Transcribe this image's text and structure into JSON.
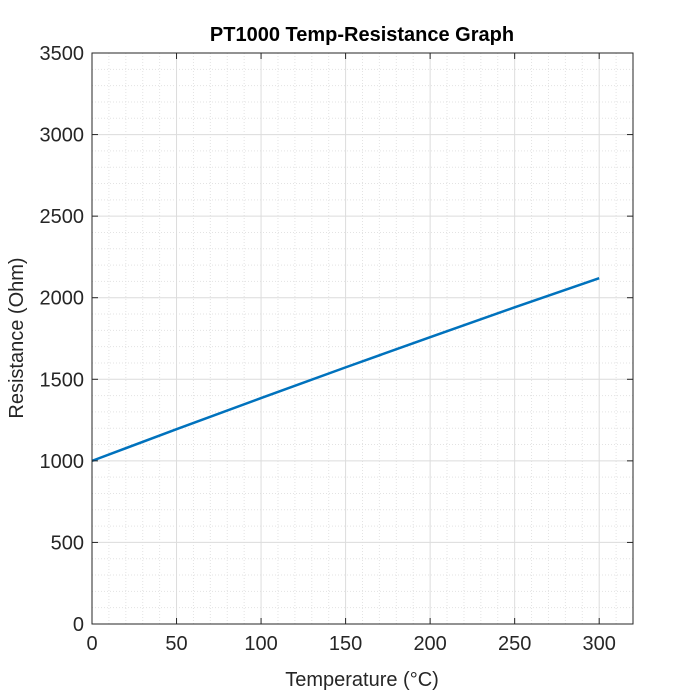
{
  "chart_data": {
    "type": "line",
    "title": "PT1000 Temp-Resistance Graph",
    "xlabel": "Temperature (°C)",
    "ylabel": "Resistance (Ohm)",
    "xlim": [
      0,
      320
    ],
    "ylim": [
      0,
      3500
    ],
    "x_ticks": [
      0,
      50,
      100,
      150,
      200,
      250,
      300
    ],
    "y_ticks": [
      0,
      500,
      1000,
      1500,
      2000,
      2500,
      3000,
      3500
    ],
    "x_minor_step": 10,
    "y_minor_step": 100,
    "grid": true,
    "minor_grid": true,
    "series": [
      {
        "color": "#0072BD",
        "x": [
          0,
          50,
          100,
          150,
          200,
          250,
          300
        ],
        "y": [
          1000,
          1194,
          1385,
          1573,
          1758,
          1941,
          2120
        ]
      }
    ]
  }
}
